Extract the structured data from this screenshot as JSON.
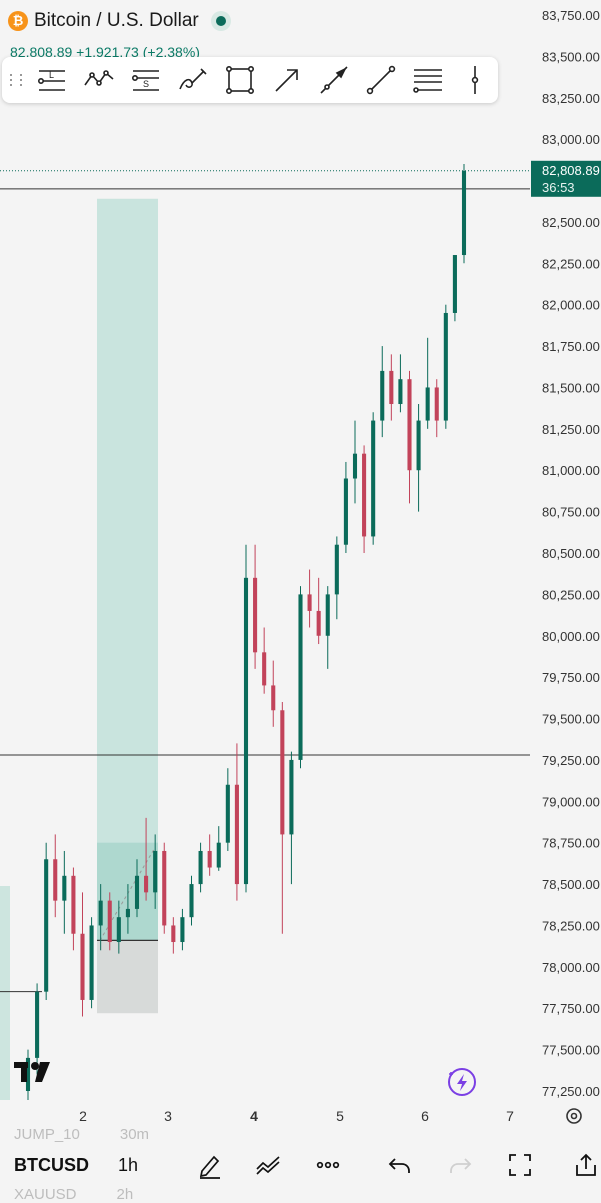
{
  "header": {
    "symbol_title": "Bitcoin / U.S. Dollar",
    "quote": "82,808.89 +1,921.73 (+2.38%)",
    "logo_glyph": "₿",
    "live_color": "#0b6b5a"
  },
  "toolbar": {
    "tools": [
      {
        "name": "long-position-icon",
        "label": "L"
      },
      {
        "name": "pattern-icon"
      },
      {
        "name": "short-position-icon",
        "label": "S"
      },
      {
        "name": "brush-icon"
      },
      {
        "name": "rectangle-icon"
      },
      {
        "name": "arrow-icon"
      },
      {
        "name": "trend-angle-icon"
      },
      {
        "name": "trend-line-icon"
      },
      {
        "name": "fib-retracement-icon"
      },
      {
        "name": "vertical-line-icon"
      }
    ]
  },
  "chart_data": {
    "type": "candlestick",
    "y_ticks": [
      "83,750.00",
      "83,500.00",
      "83,250.00",
      "83,000.00",
      "82,500.00",
      "82,250.00",
      "82,000.00",
      "81,750.00",
      "81,500.00",
      "81,250.00",
      "81,000.00",
      "80,750.00",
      "80,500.00",
      "80,250.00",
      "80,000.00",
      "79,750.00",
      "79,500.00",
      "79,250.00",
      "79,000.00",
      "78,750.00",
      "78,500.00",
      "78,250.00",
      "78,000.00",
      "77,750.00",
      "77,500.00",
      "77,250.00"
    ],
    "y_tick_values": [
      83750,
      83500,
      83250,
      83000,
      82500,
      82250,
      82000,
      81750,
      81500,
      81250,
      81000,
      80750,
      80500,
      80250,
      80000,
      79750,
      79500,
      79250,
      79000,
      78750,
      78500,
      78250,
      78000,
      77750,
      77500,
      77250
    ],
    "x_ticks": [
      "2",
      "3",
      "4",
      "5",
      "6",
      "7"
    ],
    "x_tick_bold": [
      false,
      false,
      true,
      false,
      false,
      false
    ],
    "ylim": [
      77150,
      83850
    ],
    "last_price_label": "82,808.89",
    "countdown": "36:53",
    "horizontal_levels": [
      82700,
      79280
    ],
    "up_color": "#0b6b5a",
    "down_color": "#c2435a",
    "grid": false,
    "position_tool": {
      "top": 82640,
      "entry": 78160,
      "bottom": 77720
    },
    "candles": [
      {
        "o": 77250,
        "h": 77500,
        "l": 77180,
        "c": 77450
      },
      {
        "o": 77450,
        "h": 77900,
        "l": 77350,
        "c": 77850
      },
      {
        "o": 77850,
        "h": 78750,
        "l": 77800,
        "c": 78650
      },
      {
        "o": 78650,
        "h": 78800,
        "l": 78300,
        "c": 78400
      },
      {
        "o": 78400,
        "h": 78700,
        "l": 78200,
        "c": 78550
      },
      {
        "o": 78550,
        "h": 78600,
        "l": 78100,
        "c": 78200
      },
      {
        "o": 78200,
        "h": 78450,
        "l": 77700,
        "c": 77800
      },
      {
        "o": 77800,
        "h": 78300,
        "l": 77750,
        "c": 78250
      },
      {
        "o": 78250,
        "h": 78500,
        "l": 78100,
        "c": 78400
      },
      {
        "o": 78400,
        "h": 78450,
        "l": 78100,
        "c": 78150
      },
      {
        "o": 78150,
        "h": 78400,
        "l": 78080,
        "c": 78300
      },
      {
        "o": 78300,
        "h": 78500,
        "l": 78200,
        "c": 78350
      },
      {
        "o": 78350,
        "h": 78650,
        "l": 78300,
        "c": 78550
      },
      {
        "o": 78550,
        "h": 78900,
        "l": 78400,
        "c": 78450
      },
      {
        "o": 78450,
        "h": 78800,
        "l": 78350,
        "c": 78700
      },
      {
        "o": 78700,
        "h": 78750,
        "l": 78200,
        "c": 78250
      },
      {
        "o": 78250,
        "h": 78300,
        "l": 78080,
        "c": 78150
      },
      {
        "o": 78150,
        "h": 78350,
        "l": 78100,
        "c": 78300
      },
      {
        "o": 78300,
        "h": 78550,
        "l": 78250,
        "c": 78500
      },
      {
        "o": 78500,
        "h": 78750,
        "l": 78450,
        "c": 78700
      },
      {
        "o": 78700,
        "h": 78800,
        "l": 78550,
        "c": 78600
      },
      {
        "o": 78600,
        "h": 78850,
        "l": 78580,
        "c": 78750
      },
      {
        "o": 78750,
        "h": 79200,
        "l": 78700,
        "c": 79100
      },
      {
        "o": 79100,
        "h": 79350,
        "l": 78400,
        "c": 78500
      },
      {
        "o": 78500,
        "h": 80550,
        "l": 78450,
        "c": 80350
      },
      {
        "o": 80350,
        "h": 80550,
        "l": 79800,
        "c": 79900
      },
      {
        "o": 79900,
        "h": 80050,
        "l": 79650,
        "c": 79700
      },
      {
        "o": 79700,
        "h": 79850,
        "l": 79450,
        "c": 79550
      },
      {
        "o": 79550,
        "h": 79600,
        "l": 78200,
        "c": 78800
      },
      {
        "o": 78800,
        "h": 79300,
        "l": 78500,
        "c": 79250
      },
      {
        "o": 79250,
        "h": 80300,
        "l": 79200,
        "c": 80250
      },
      {
        "o": 80250,
        "h": 80400,
        "l": 80050,
        "c": 80150
      },
      {
        "o": 80150,
        "h": 80350,
        "l": 79950,
        "c": 80000
      },
      {
        "o": 80000,
        "h": 80300,
        "l": 79800,
        "c": 80250
      },
      {
        "o": 80250,
        "h": 80600,
        "l": 80100,
        "c": 80550
      },
      {
        "o": 80550,
        "h": 81050,
        "l": 80500,
        "c": 80950
      },
      {
        "o": 80950,
        "h": 81300,
        "l": 80800,
        "c": 81100
      },
      {
        "o": 81100,
        "h": 81150,
        "l": 80500,
        "c": 80600
      },
      {
        "o": 80600,
        "h": 81350,
        "l": 80550,
        "c": 81300
      },
      {
        "o": 81300,
        "h": 81750,
        "l": 81200,
        "c": 81600
      },
      {
        "o": 81600,
        "h": 81700,
        "l": 81300,
        "c": 81400
      },
      {
        "o": 81400,
        "h": 81700,
        "l": 81350,
        "c": 81550
      },
      {
        "o": 81550,
        "h": 81600,
        "l": 80800,
        "c": 81000
      },
      {
        "o": 81000,
        "h": 81400,
        "l": 80750,
        "c": 81300
      },
      {
        "o": 81300,
        "h": 81800,
        "l": 81250,
        "c": 81500
      },
      {
        "o": 81500,
        "h": 81550,
        "l": 81200,
        "c": 81300
      },
      {
        "o": 81300,
        "h": 82000,
        "l": 81250,
        "c": 81950
      },
      {
        "o": 81950,
        "h": 82300,
        "l": 81900,
        "c": 82300
      },
      {
        "o": 82300,
        "h": 82850,
        "l": 82250,
        "c": 82808
      }
    ]
  },
  "bottom": {
    "ghost_top": "JUMP_10",
    "ghost_top_int": "30m",
    "ghost_bottom": "XAUUSD",
    "ghost_bottom_int": "2h",
    "symbol": "BTCUSD",
    "interval": "1h"
  }
}
